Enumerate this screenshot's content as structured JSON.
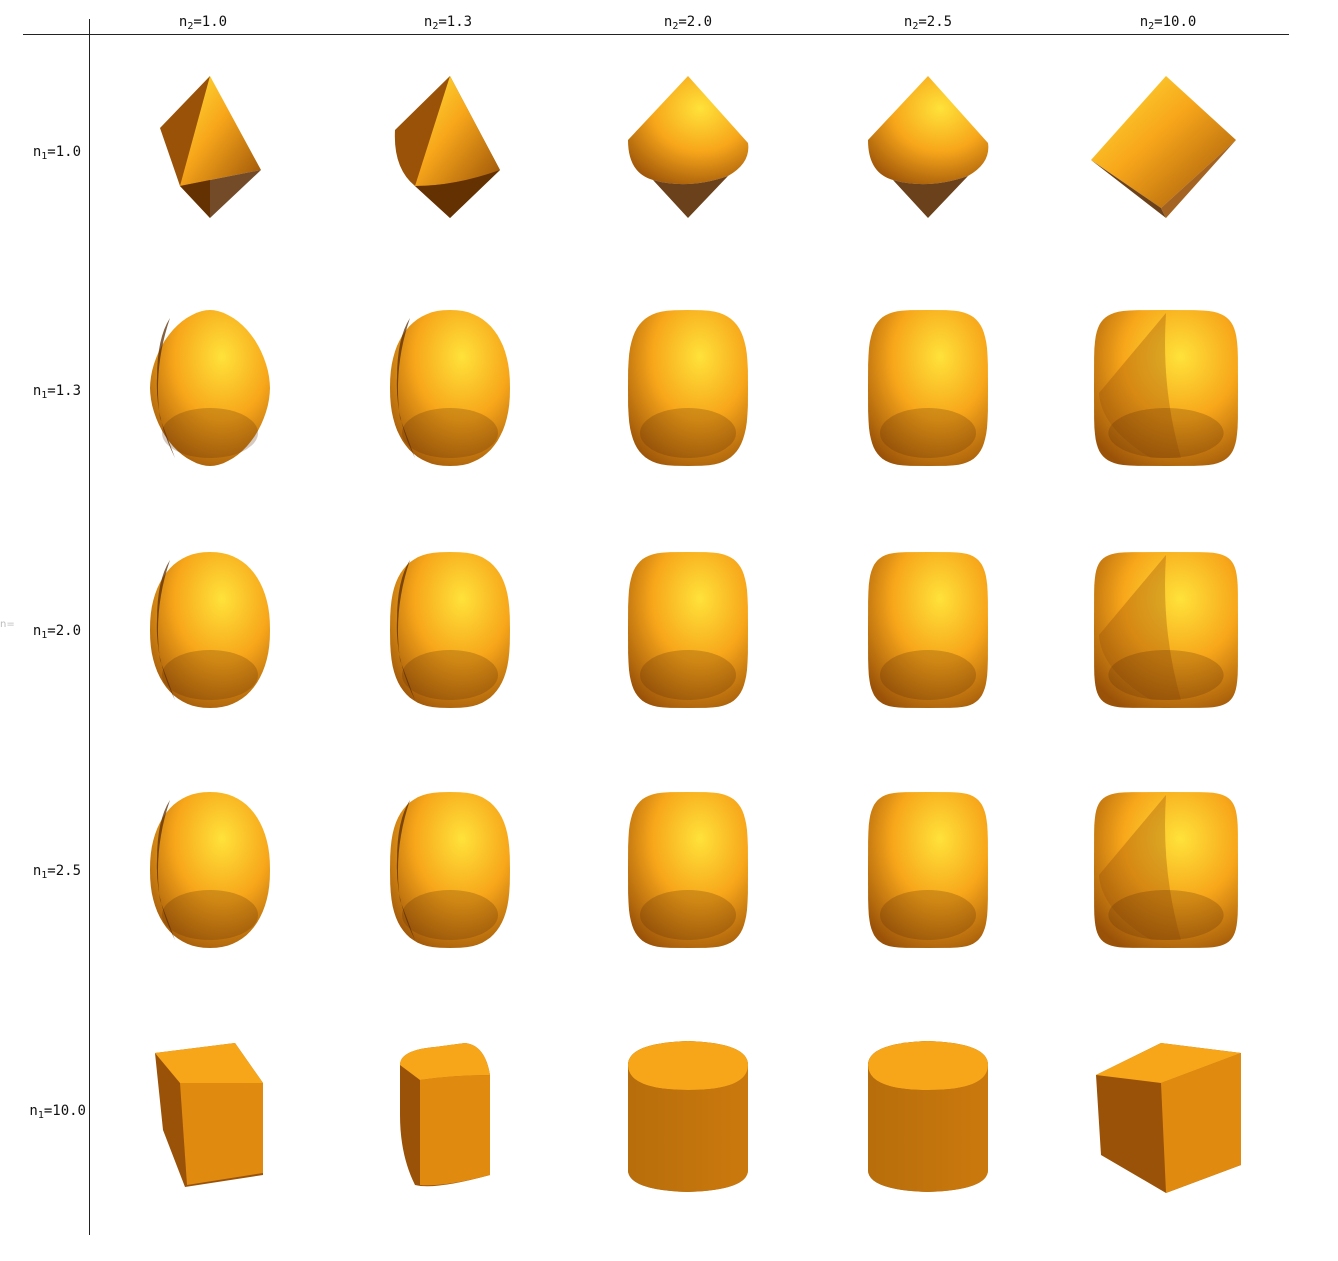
{
  "colors": {
    "light": "#ffe23a",
    "mid": "#f7a61a",
    "base": "#e08a10",
    "dark": "#9a5208",
    "darkest": "#5a2c02"
  },
  "stray_label": "n=",
  "columns": [
    {
      "var": "n",
      "sub": "2",
      "eq": "=1.0"
    },
    {
      "var": "n",
      "sub": "2",
      "eq": "=1.3"
    },
    {
      "var": "n",
      "sub": "2",
      "eq": "=2.0"
    },
    {
      "var": "n",
      "sub": "2",
      "eq": "=2.5"
    },
    {
      "var": "n",
      "sub": "2",
      "eq": "=10.0"
    }
  ],
  "rows": [
    {
      "var": "n",
      "sub": "1",
      "eq": "=1.0"
    },
    {
      "var": "n",
      "sub": "1",
      "eq": "=1.3"
    },
    {
      "var": "n",
      "sub": "1",
      "eq": "=2.0"
    },
    {
      "var": "n",
      "sub": "1",
      "eq": "=2.5"
    },
    {
      "var": "n",
      "sub": "1",
      "eq": "=10.0"
    }
  ]
}
